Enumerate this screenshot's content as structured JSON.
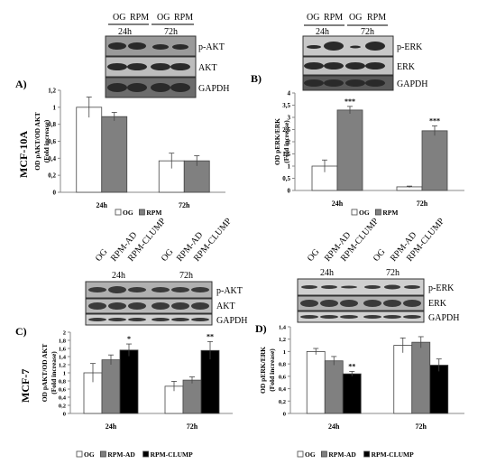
{
  "panel_labels": {
    "a": "A)",
    "b": "B)",
    "c": "C)",
    "d": "D)"
  },
  "cell_lines": {
    "top": "MCF-10A",
    "bottom": "MCF-7"
  },
  "colors": {
    "og": "#ffffff",
    "rpm": "#808080",
    "clump": "#000000"
  },
  "top_blots": {
    "left": {
      "lanes": [
        "OG",
        "RPM",
        "OG",
        "RPM"
      ],
      "groups": [
        "24h",
        "72h"
      ],
      "bands": [
        "p-AKT",
        "AKT",
        "GAPDH"
      ]
    },
    "right": {
      "lanes": [
        "OG",
        "RPM",
        "OG",
        "RPM"
      ],
      "groups": [
        "24h",
        "72h"
      ],
      "bands": [
        "p-ERK",
        "ERK",
        "GAPDH"
      ]
    }
  },
  "bottom_blots": {
    "left": {
      "lanes": [
        "OG",
        "RPM-AD",
        "RPM-CLUMP",
        "OG",
        "RPM-AD",
        "RPM-CLUMP"
      ],
      "groups": [
        "24h",
        "72h"
      ],
      "bands": [
        "p-AKT",
        "AKT",
        "GAPDH"
      ]
    },
    "right": {
      "lanes": [
        "OG",
        "RPM-AD",
        "RPM-CLUMP",
        "OG",
        "RPM-AD",
        "RPM-CLUMP"
      ],
      "groups": [
        "24h",
        "72h"
      ],
      "bands": [
        "p-ERK",
        "ERK",
        "GAPDH"
      ]
    }
  },
  "chart_data": [
    {
      "id": "A",
      "type": "bar",
      "ylabel": "OD pAKT/OD AKT",
      "ylabel2": "(Fold increase)",
      "categories": [
        "24h",
        "72h"
      ],
      "ylim": [
        0,
        1.2
      ],
      "yticks": [
        "0",
        "0,2",
        "0,4",
        "0,6",
        "0,8",
        "1",
        "1,2"
      ],
      "series": [
        {
          "name": "OG",
          "color": "#ffffff",
          "values": [
            1.0,
            0.37
          ],
          "errors": [
            0.12,
            0.09
          ]
        },
        {
          "name": "RPM",
          "color": "#808080",
          "values": [
            0.89,
            0.37
          ],
          "errors": [
            0.05,
            0.06
          ]
        }
      ],
      "annotations": [
        [
          "",
          ""
        ],
        [
          "",
          ""
        ]
      ],
      "legend": [
        "OG",
        "RPM"
      ]
    },
    {
      "id": "B",
      "type": "bar",
      "ylabel": "OD pERK/ERK",
      "ylabel2": "(Fold increase)",
      "categories": [
        "24h",
        "72h"
      ],
      "ylim": [
        0,
        4
      ],
      "yticks": [
        "0",
        "0,5",
        "1",
        "1,5",
        "2",
        "2,5",
        "3",
        "3,5",
        "4"
      ],
      "series": [
        {
          "name": "OG",
          "color": "#ffffff",
          "values": [
            1.0,
            0.15
          ],
          "errors": [
            0.25,
            0.03
          ]
        },
        {
          "name": "RPM",
          "color": "#808080",
          "values": [
            3.3,
            2.45
          ],
          "errors": [
            0.15,
            0.2
          ]
        }
      ],
      "annotations": [
        [
          "",
          "***"
        ],
        [
          "",
          "***"
        ]
      ],
      "legend": [
        "OG",
        "RPM"
      ]
    },
    {
      "id": "C",
      "type": "bar",
      "ylabel": "OD pAKT/OD AKT",
      "ylabel2": "(Fold increase)",
      "categories": [
        "24h",
        "72h"
      ],
      "ylim": [
        0,
        2
      ],
      "yticks": [
        "0",
        "0,2",
        "0,4",
        "0,6",
        "0,8",
        "1",
        "1,2",
        "1,4",
        "1,6",
        "1,8",
        "2"
      ],
      "series": [
        {
          "name": "OG",
          "color": "#ffffff",
          "values": [
            1.0,
            0.67
          ],
          "errors": [
            0.23,
            0.12
          ]
        },
        {
          "name": "RPM-AD",
          "color": "#808080",
          "values": [
            1.32,
            0.82
          ],
          "errors": [
            0.12,
            0.08
          ]
        },
        {
          "name": "RPM-CLUMP",
          "color": "#000000",
          "values": [
            1.56,
            1.55
          ],
          "errors": [
            0.15,
            0.22
          ]
        }
      ],
      "annotations": [
        [
          "",
          "",
          "*"
        ],
        [
          "",
          "",
          "**"
        ]
      ],
      "legend": [
        "OG",
        "RPM-AD",
        "RPM-CLUMP"
      ]
    },
    {
      "id": "D",
      "type": "bar",
      "ylabel": "OD pERK/ERK",
      "ylabel2": "(Fold increase)",
      "categories": [
        "24h",
        "72h"
      ],
      "ylim": [
        0,
        1.4
      ],
      "yticks": [
        "0",
        "0,2",
        "0,4",
        "0,6",
        "0,8",
        "1",
        "1,2",
        "1,4"
      ],
      "series": [
        {
          "name": "OG",
          "color": "#ffffff",
          "values": [
            1.0,
            1.1
          ],
          "errors": [
            0.05,
            0.12
          ]
        },
        {
          "name": "RPM-AD",
          "color": "#808080",
          "values": [
            0.85,
            1.15
          ],
          "errors": [
            0.07,
            0.09
          ]
        },
        {
          "name": "RPM-CLUMP",
          "color": "#000000",
          "values": [
            0.64,
            0.78
          ],
          "errors": [
            0.04,
            0.1
          ]
        }
      ],
      "annotations": [
        [
          "",
          "",
          "**"
        ],
        [
          "",
          "",
          ""
        ]
      ],
      "legend": [
        "OG",
        "RPM-AD",
        "RPM-CLUMP"
      ]
    }
  ]
}
